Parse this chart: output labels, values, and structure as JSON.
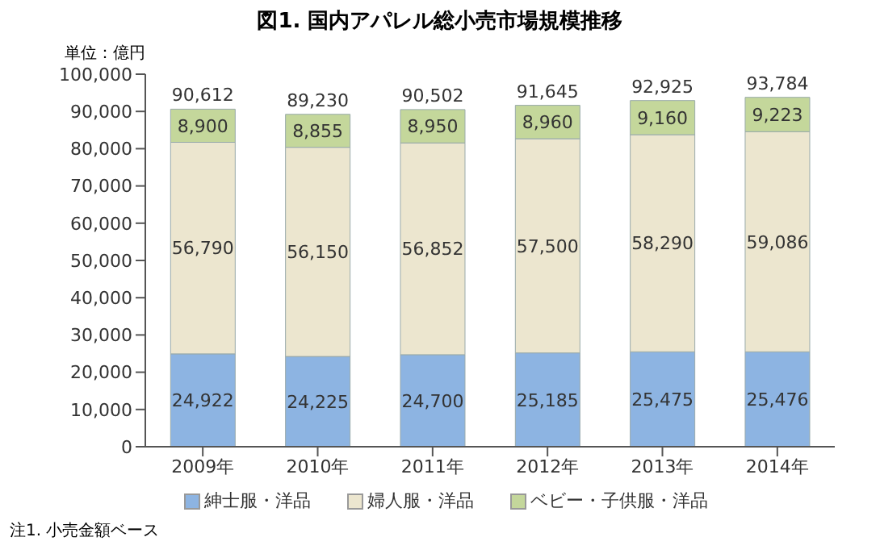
{
  "chart_data": {
    "type": "bar",
    "title": "図1. 国内アパレル総小売市場規模推移",
    "ylabel": "単位：億円",
    "annotations": [
      "注1. 小売金額ベース"
    ],
    "categories": [
      "2009年",
      "2010年",
      "2011年",
      "2012年",
      "2013年",
      "2014年"
    ],
    "series": [
      {
        "name": "紳士服・洋品",
        "color": "#8db4e2",
        "values": [
          24922,
          24225,
          24700,
          25185,
          25475,
          25476
        ],
        "value_labels": [
          "24,922",
          "24,225",
          "24,700",
          "25,185",
          "25,475",
          "25,476"
        ]
      },
      {
        "name": "婦人服・洋品",
        "color": "#ece6cf",
        "values": [
          56790,
          56150,
          56852,
          57500,
          58290,
          59086
        ],
        "value_labels": [
          "56,790",
          "56,150",
          "56,852",
          "57,500",
          "58,290",
          "59,086"
        ]
      },
      {
        "name": "ベビー・子供服・洋品",
        "color": "#c4d79b",
        "values": [
          8900,
          8855,
          8950,
          8960,
          9160,
          9223
        ],
        "value_labels": [
          "8,900",
          "8,855",
          "8,950",
          "8,960",
          "9,160",
          "9,223"
        ]
      }
    ],
    "stacked": true,
    "totals": [
      "90,612",
      "89,230",
      "90,502",
      "91,645",
      "92,925",
      "93,784"
    ],
    "ylim": [
      0,
      100000
    ],
    "yticks": [
      0,
      {
        "value": 10000,
        "label": "10,000"
      },
      {
        "value": 20000,
        "label": "20,000"
      },
      {
        "value": 30000,
        "label": "30,000"
      },
      {
        "value": 40000,
        "label": "40,000"
      },
      {
        "value": 50000,
        "label": "50,000"
      },
      {
        "value": 60000,
        "label": "60,000"
      },
      {
        "value": 70000,
        "label": "70,000"
      },
      {
        "value": 80000,
        "label": "80,000"
      },
      {
        "value": 90000,
        "label": "90,000"
      },
      {
        "value": 100000,
        "label": "100,000"
      }
    ],
    "legend": "bottom"
  }
}
